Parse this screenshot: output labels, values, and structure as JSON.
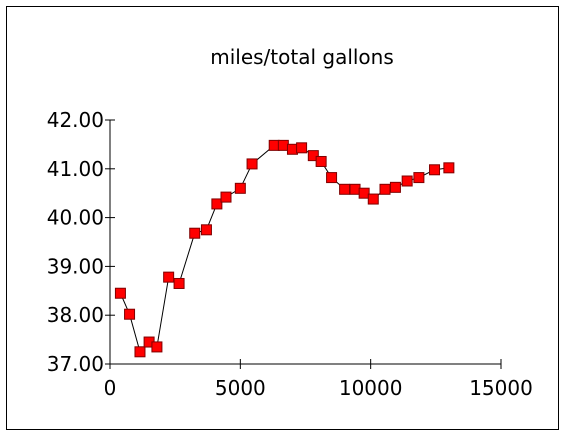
{
  "chart_data": {
    "type": "scatter",
    "title": "miles/total gallons",
    "xlabel": "",
    "ylabel": "",
    "xlim": [
      0,
      15000
    ],
    "ylim": [
      37.0,
      42.0
    ],
    "x_ticks": [
      "0",
      "5000",
      "10000",
      "15000"
    ],
    "y_ticks": [
      "37.00",
      "38.00",
      "39.00",
      "40.00",
      "41.00",
      "42.00"
    ],
    "grid": false,
    "legend": "none",
    "marker_color": "#ff0000",
    "marker_edge": "#800000",
    "line_color": "#000000",
    "series": [
      {
        "x": [
          400,
          750,
          1150,
          1500,
          1800,
          2250,
          2650,
          3250,
          3700,
          4100,
          4450,
          5000,
          5450,
          6300,
          6650,
          7000,
          7350,
          7800,
          8100,
          8500,
          9000,
          9400,
          9750,
          10100,
          10550,
          10950,
          11400,
          11850,
          12450,
          13000
        ],
        "y": [
          38.45,
          38.02,
          37.25,
          37.45,
          37.35,
          38.78,
          38.65,
          39.68,
          39.75,
          40.28,
          40.42,
          40.6,
          41.1,
          41.48,
          41.48,
          41.4,
          41.43,
          41.27,
          41.15,
          40.82,
          40.58,
          40.58,
          40.5,
          40.38,
          40.58,
          40.62,
          40.75,
          40.82,
          40.98,
          41.02
        ]
      }
    ]
  }
}
